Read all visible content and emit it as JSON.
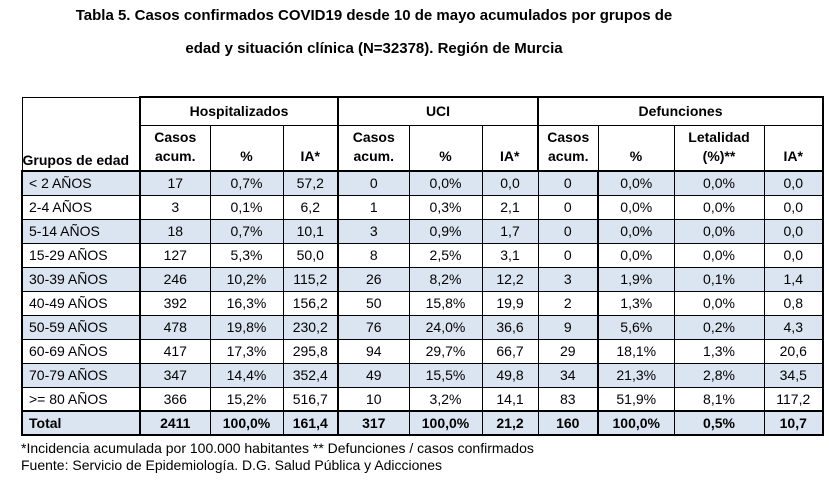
{
  "title": {
    "line1": "Tabla 5. Casos confirmados COVID19 desde 10 de mayo acumulados por grupos de",
    "line2": "edad y situación clínica (N=32378). Región de Murcia"
  },
  "table": {
    "row_header": "Grupos de edad",
    "groups": [
      {
        "label": "Hospitalizados",
        "columns": [
          "Casos acum.",
          "%",
          "IA*"
        ]
      },
      {
        "label": "UCI",
        "columns": [
          "Casos acum.",
          "%",
          "IA*"
        ]
      },
      {
        "label": "Defunciones",
        "columns": [
          "Casos acum.",
          "%",
          "Letalidad (%)**",
          "IA*"
        ]
      }
    ],
    "rows": [
      {
        "age": "< 2 AÑOS",
        "values": [
          "17",
          "0,7%",
          "57,2",
          "0",
          "0,0%",
          "0,0",
          "0",
          "0,0%",
          "0,0%",
          "0,0"
        ]
      },
      {
        "age": "2-4 AÑOS",
        "values": [
          "3",
          "0,1%",
          "6,2",
          "1",
          "0,3%",
          "2,1",
          "0",
          "0,0%",
          "0,0%",
          "0,0"
        ]
      },
      {
        "age": "5-14 AÑOS",
        "values": [
          "18",
          "0,7%",
          "10,1",
          "3",
          "0,9%",
          "1,7",
          "0",
          "0,0%",
          "0,0%",
          "0,0"
        ]
      },
      {
        "age": "15-29 AÑOS",
        "values": [
          "127",
          "5,3%",
          "50,0",
          "8",
          "2,5%",
          "3,1",
          "0",
          "0,0%",
          "0,0%",
          "0,0"
        ]
      },
      {
        "age": "30-39 AÑOS",
        "values": [
          "246",
          "10,2%",
          "115,2",
          "26",
          "8,2%",
          "12,2",
          "3",
          "1,9%",
          "0,1%",
          "1,4"
        ]
      },
      {
        "age": "40-49 AÑOS",
        "values": [
          "392",
          "16,3%",
          "156,2",
          "50",
          "15,8%",
          "19,9",
          "2",
          "1,3%",
          "0,0%",
          "0,8"
        ]
      },
      {
        "age": "50-59 AÑOS",
        "values": [
          "478",
          "19,8%",
          "230,2",
          "76",
          "24,0%",
          "36,6",
          "9",
          "5,6%",
          "0,2%",
          "4,3"
        ]
      },
      {
        "age": "60-69 AÑOS",
        "values": [
          "417",
          "17,3%",
          "295,8",
          "94",
          "29,7%",
          "66,7",
          "29",
          "18,1%",
          "1,3%",
          "20,6"
        ]
      },
      {
        "age": "70-79 AÑOS",
        "values": [
          "347",
          "14,4%",
          "352,4",
          "49",
          "15,5%",
          "49,8",
          "34",
          "21,3%",
          "2,8%",
          "34,5"
        ]
      },
      {
        "age": ">= 80 AÑOS",
        "values": [
          "366",
          "15,2%",
          "516,7",
          "10",
          "3,2%",
          "14,1",
          "83",
          "51,9%",
          "8,1%",
          "117,2"
        ]
      }
    ],
    "total_row": {
      "age": "Total",
      "values": [
        "2411",
        "100,0%",
        "161,4",
        "317",
        "100,0%",
        "21,2",
        "160",
        "100,0%",
        "0,5%",
        "10,7"
      ]
    }
  },
  "footnotes": {
    "line1": "*Incidencia acumulada por 100.000 habitantes ** Defunciones / casos confirmados",
    "line2": "Fuente: Servicio de Epidemiología. D.G. Salud Pública y Adicciones"
  },
  "colors": {
    "row_shade": "#DBE5F1",
    "border": "#000000",
    "text": "#000000",
    "background": "#FFFFFF"
  }
}
